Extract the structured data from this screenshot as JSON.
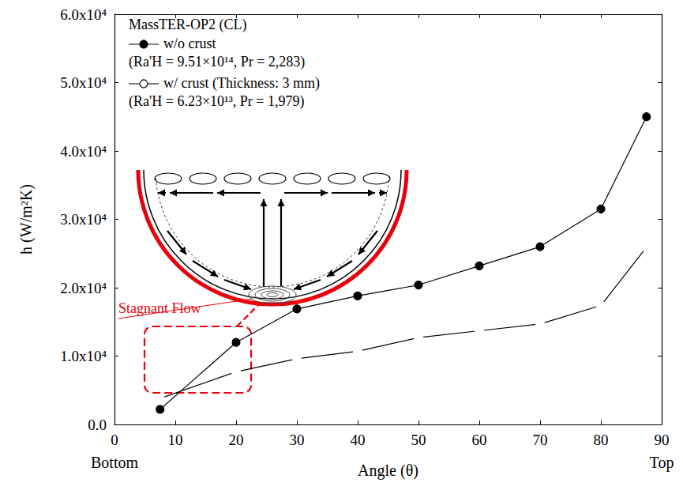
{
  "chart_data": {
    "type": "line",
    "title": "MassTER-OP2 (CL)",
    "x_label": "Angle (θ)",
    "y_label": "h (W/m²K)",
    "xlim": [
      0,
      90
    ],
    "xticks": [
      0,
      10,
      20,
      30,
      40,
      50,
      60,
      70,
      80,
      90
    ],
    "ylim": [
      0,
      60000
    ],
    "yticks": [
      {
        "value": 0,
        "label": "0.0"
      },
      {
        "value": 10000,
        "label": "1.0x10⁴"
      },
      {
        "value": 20000,
        "label": "2.0x10⁴"
      },
      {
        "value": 30000,
        "label": "3.0x10⁴"
      },
      {
        "value": 40000,
        "label": "4.0x10⁴"
      },
      {
        "value": 50000,
        "label": "5.0x10⁴"
      },
      {
        "value": 60000,
        "label": "6.0x10⁴"
      }
    ],
    "grid": false,
    "legend": "upper left",
    "series": [
      {
        "name": "w/o crust",
        "description": "(Ra'H = 9.51×10¹⁴, Pr = 2,283)",
        "color": "#000000",
        "marker": "filled_circle",
        "line_style": "solid",
        "x": [
          7.5,
          20,
          30,
          40,
          50,
          60,
          70,
          80,
          87.5
        ],
        "values": [
          2200,
          12000,
          16900,
          18800,
          20400,
          23200,
          26000,
          31500,
          45000
        ]
      },
      {
        "name": "w/ crust (Thickness: 3 mm)",
        "description": "(Ra'H = 6.23×10¹³, Pr = 1,979)",
        "color": "#000000",
        "marker": "open_circle",
        "line_style": "solid",
        "x": [
          7.5,
          20,
          30,
          40,
          50,
          60,
          70,
          80,
          87.5
        ],
        "values": [
          3800,
          7700,
          9600,
          10700,
          12700,
          13700,
          14700,
          17400,
          25900
        ]
      }
    ],
    "annotations": [
      {
        "text": "Bottom",
        "x": 0
      },
      {
        "text": "Top",
        "x": 90
      },
      {
        "text": "Stagnant Flow"
      }
    ]
  }
}
